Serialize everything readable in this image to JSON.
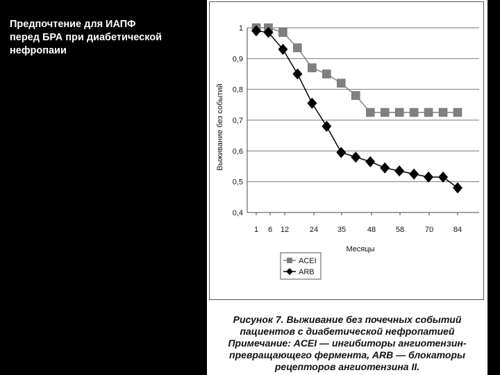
{
  "slide": {
    "title": "Предпочтение для ИАПФ\nперед БРА при диабетической\nнефропаии"
  },
  "figure": {
    "caption_lines": [
      "Рисунок 7. Выживание без почечных событий",
      "пациентов с диабетической нефропатией",
      "Примечание: ACEI — ингибиторы ангиотензин-",
      "превращающего фермента, ARB — блокаторы",
      "рецепторов ангиотензина II."
    ]
  },
  "chart_data": {
    "type": "line",
    "title": "",
    "xlabel": "Месяцы",
    "ylabel": "Выживание без событий",
    "x_ticks": [
      "1",
      "6",
      "12",
      "24",
      "35",
      "48",
      "58",
      "70",
      "84"
    ],
    "y_ticks": [
      "0,4",
      "0,5",
      "0,6",
      "0,7",
      "0,8",
      "0,9",
      "1"
    ],
    "ylim": [
      0.4,
      1.0
    ],
    "grid": "horizontal",
    "legend_position": "bottom-left",
    "series": [
      {
        "name": "ACEI",
        "marker": "square",
        "color": "#808080",
        "x": [
          1,
          6,
          12,
          18,
          24,
          30,
          36,
          42,
          48,
          54,
          60,
          66,
          72,
          78,
          84
        ],
        "y": [
          1.0,
          1.0,
          0.985,
          0.935,
          0.87,
          0.85,
          0.82,
          0.78,
          0.725,
          0.725,
          0.725,
          0.725,
          0.725,
          0.725,
          0.725
        ]
      },
      {
        "name": "ARB",
        "marker": "diamond",
        "color": "#000000",
        "x": [
          1,
          6,
          12,
          18,
          24,
          30,
          36,
          42,
          48,
          54,
          60,
          66,
          72,
          78,
          84
        ],
        "y": [
          0.99,
          0.985,
          0.93,
          0.85,
          0.755,
          0.68,
          0.595,
          0.58,
          0.565,
          0.545,
          0.535,
          0.525,
          0.515,
          0.515,
          0.48
        ]
      }
    ]
  }
}
